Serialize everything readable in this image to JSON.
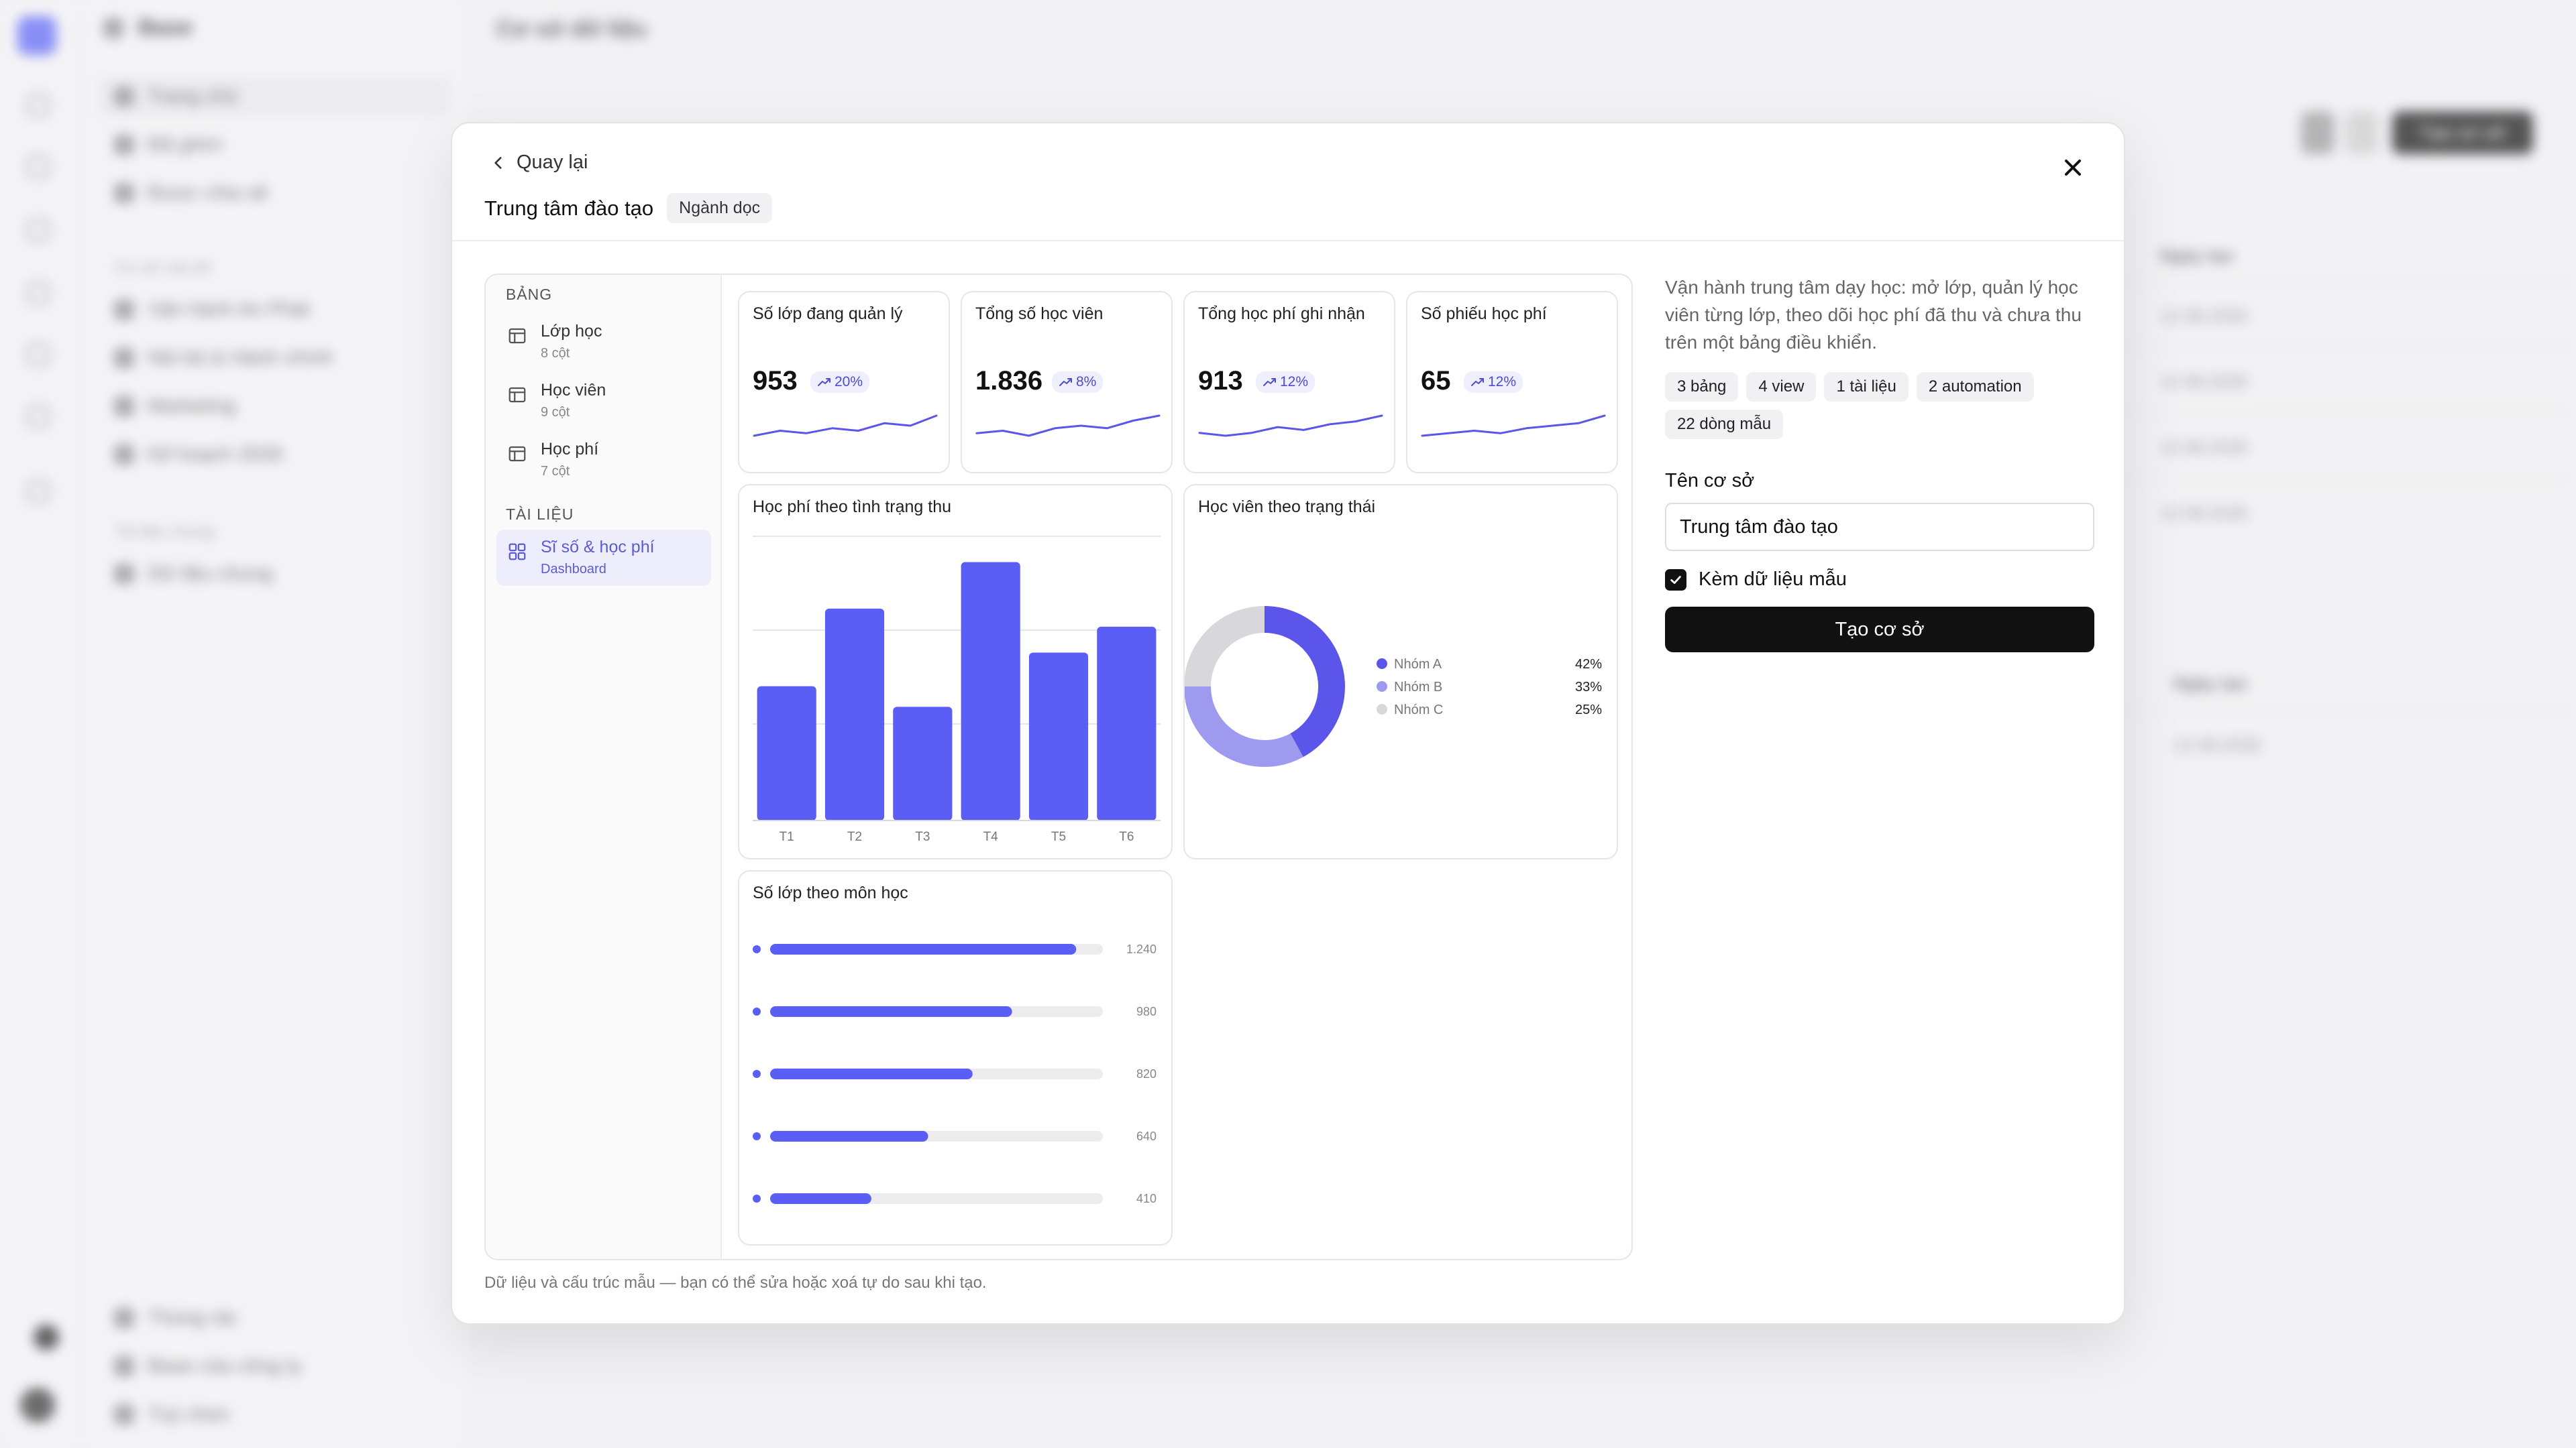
{
  "background": {
    "app_name": "Base",
    "page_title": "Cơ sở dữ liệu",
    "nav": [
      "Trang chủ",
      "Đã ghim",
      "Được chia sẻ"
    ],
    "section_my": "Cơ sở của tôi",
    "bases": [
      "Vận hành An Phát",
      "Nội bộ & Hành chính",
      "Marketing",
      "Kế hoạch 2026"
    ],
    "section_shared": "Tài liệu chung",
    "shared": [
      "Dữ liệu chung"
    ],
    "footer_nav": [
      "Thùng rác",
      "Base của công ty",
      "Tuỳ chọn"
    ],
    "create_button": "Tạo cơ sở",
    "col_header_1": "Ngày tạo",
    "col_header_2": "Ngày tạo",
    "dates": [
      "12.08.2026",
      "12.08.2026",
      "12.08.2026",
      "12.08.2026",
      "12.08.2026"
    ]
  },
  "modal": {
    "back_label": "Quay lại",
    "title": "Trung tâm đào tạo",
    "badge": "Ngành dọc",
    "sidebar": {
      "tables_section": "BẢNG",
      "tables": [
        {
          "name": "Lớp học",
          "sub": "8 cột"
        },
        {
          "name": "Học viên",
          "sub": "9 cột"
        },
        {
          "name": "Học phí",
          "sub": "7 cột"
        }
      ],
      "docs_section": "TÀI LIỆU",
      "docs": [
        {
          "name": "Sĩ số & học phí",
          "sub": "Dashboard"
        }
      ]
    },
    "kpis": [
      {
        "title": "Số lớp đang quản lý",
        "value": "953",
        "delta": "20%"
      },
      {
        "title": "Tổng số học viên",
        "value": "1.836",
        "delta": "8%"
      },
      {
        "title": "Tổng học phí ghi nhận",
        "value": "913",
        "delta": "12%"
      },
      {
        "title": "Số phiếu học phí",
        "value": "65",
        "delta": "12%"
      }
    ],
    "donut_card": {
      "title": "Học viên theo trạng thái",
      "legend": [
        {
          "name": "Nhóm A",
          "pct": "42%",
          "color": "#5b55ea"
        },
        {
          "name": "Nhóm B",
          "pct": "33%",
          "color": "#9e9af0"
        },
        {
          "name": "Nhóm C",
          "pct": "25%",
          "color": "#d7d7dc"
        }
      ]
    },
    "hbar_card": {
      "title": "Số lớp theo môn học",
      "max": 1240,
      "rows": [
        {
          "value": 1240,
          "label": "1.240"
        },
        {
          "value": 980,
          "label": "980"
        },
        {
          "value": 820,
          "label": "820"
        },
        {
          "value": 640,
          "label": "640"
        },
        {
          "value": 410,
          "label": "410"
        }
      ]
    },
    "description": "Vận hành trung tâm dạy học: mở lớp, quản lý học viên từng lớp, theo dõi học phí đã thu và chưa thu trên một bảng điều khiển.",
    "chips": [
      "3 bảng",
      "4 view",
      "1 tài liệu",
      "2 automation",
      "22 dòng mẫu"
    ],
    "field_label": "Tên cơ sở",
    "field_value": "Trung tâm đào tạo",
    "checkbox_label": "Kèm dữ liệu mẫu",
    "checkbox_checked": true,
    "cta_label": "Tạo cơ sở",
    "footer_note": "Dữ liệu và cấu trúc mẫu — bạn có thể sửa hoặc xoá tự do sau khi tạo."
  },
  "chart_data": [
    {
      "type": "bar",
      "title": "Học phí theo tình trạng thu",
      "categories": [
        "T1",
        "T2",
        "T3",
        "T4",
        "T5",
        "T6"
      ],
      "values": [
        52,
        82,
        44,
        100,
        65,
        75
      ],
      "ylim": [
        0,
        110
      ],
      "grid": true,
      "color": "#5b5ef4"
    },
    {
      "type": "pie",
      "title": "Học viên theo trạng thái",
      "categories": [
        "Nhóm A",
        "Nhóm B",
        "Nhóm C"
      ],
      "values": [
        42,
        33,
        25
      ]
    },
    {
      "type": "bar",
      "title": "Số lớp theo môn học",
      "values": [
        1240,
        980,
        820,
        640,
        410
      ]
    },
    {
      "type": "line",
      "title": "Số lớp đang quản lý",
      "values": [
        4,
        6,
        5,
        7,
        6,
        9,
        8,
        12
      ]
    },
    {
      "type": "line",
      "title": "Tổng số học viên",
      "values": [
        5,
        6,
        4,
        7,
        8,
        7,
        10,
        12
      ]
    },
    {
      "type": "line",
      "title": "Tổng học phí ghi nhận",
      "values": [
        6,
        5,
        6,
        8,
        7,
        9,
        10,
        12
      ]
    },
    {
      "type": "line",
      "title": "Số phiếu học phí",
      "values": [
        4,
        5,
        6,
        5,
        7,
        8,
        9,
        12
      ]
    }
  ]
}
